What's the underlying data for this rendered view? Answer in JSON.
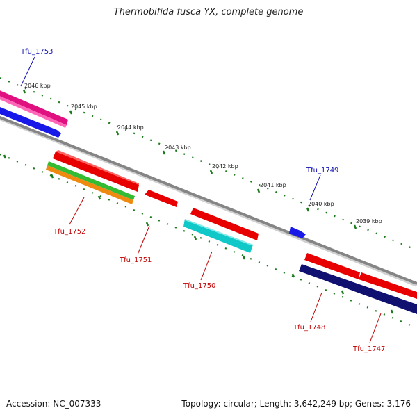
{
  "title": "Thermobifida fusca YX, complete genome",
  "footer": {
    "accession": "Accession: NC_007333",
    "summary": "Topology: circular; Length: 3,642,249 bp; Genes: 3,176"
  },
  "kbp_labels": [
    "2046 kbp",
    "2045 kbp",
    "2044 kbp",
    "2043 kbp",
    "2042 kbp",
    "2041 kbp",
    "2040 kbp",
    "2039 kbp"
  ],
  "gene_labels": [
    "Tfu_1753",
    "Tfu_1749",
    "Tfu_1752",
    "Tfu_1751",
    "Tfu_1750",
    "Tfu_1748",
    "Tfu_1747"
  ],
  "colors": {
    "forward_label": "#1010b0",
    "reverse_label": "#c00000",
    "backbone": "#888888",
    "ticks": "#1a7a1a"
  }
}
